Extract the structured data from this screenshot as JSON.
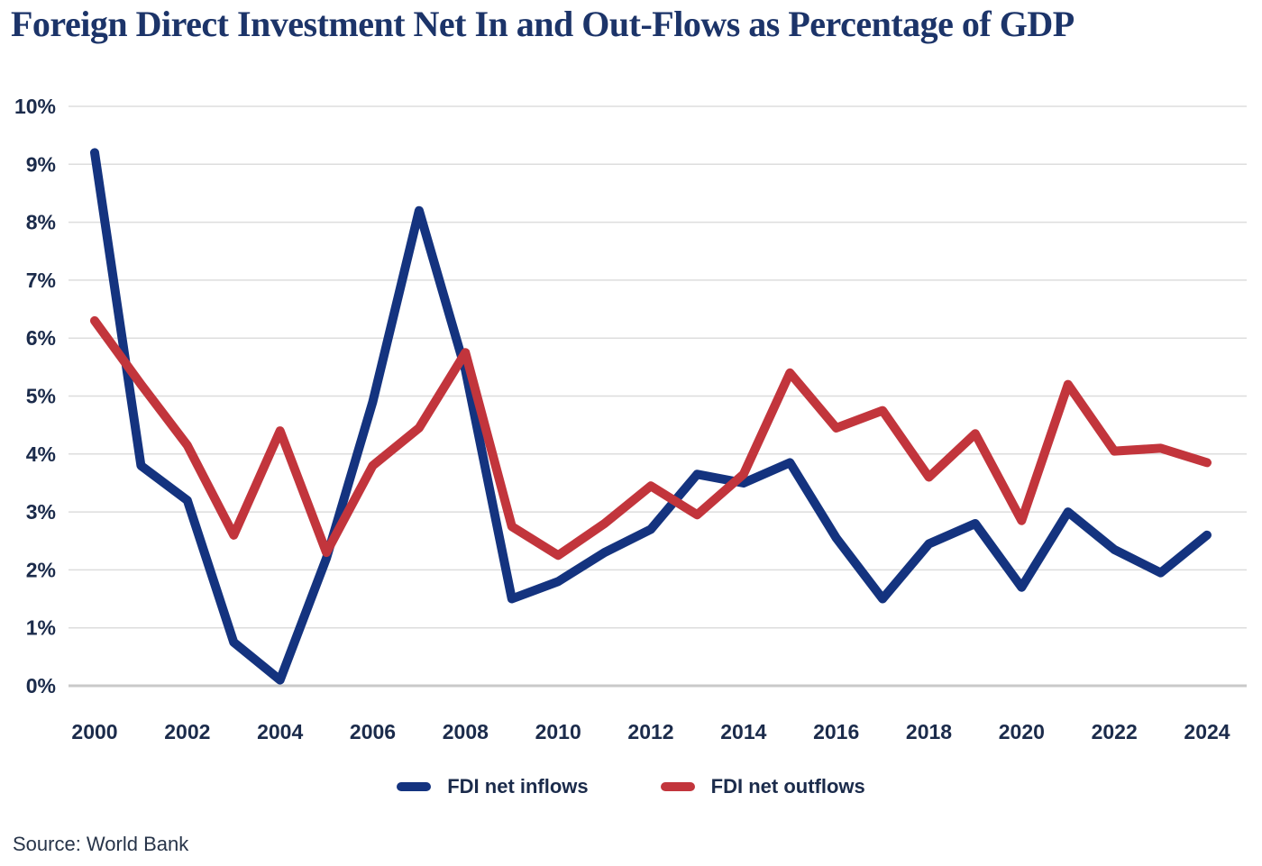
{
  "title": "Foreign Direct Investment Net In and Out-Flows as Percentage of GDP",
  "source": "Source: World Bank",
  "colors": {
    "title": "#1c3469",
    "tick_label": "#1b2b4b",
    "legend_label": "#1b2b4b",
    "source_text": "#273449",
    "gridline": "#dddddd",
    "baseline": "#c9c9c9",
    "inflows": "#14337f",
    "outflows": "#c2353c"
  },
  "chart_data": {
    "type": "line",
    "title": "Foreign Direct Investment Net In and Out-Flows as Percentage of GDP",
    "xlabel": "",
    "ylabel": "",
    "ylim": [
      0,
      10
    ],
    "grid": true,
    "legend_position": "bottom",
    "x": [
      2000,
      2001,
      2002,
      2003,
      2004,
      2005,
      2006,
      2007,
      2008,
      2009,
      2010,
      2011,
      2012,
      2013,
      2014,
      2015,
      2016,
      2017,
      2018,
      2019,
      2020,
      2021,
      2022,
      2023,
      2024
    ],
    "x_ticks": [
      2000,
      2002,
      2004,
      2006,
      2008,
      2010,
      2012,
      2014,
      2016,
      2018,
      2020,
      2022,
      2024
    ],
    "y_ticks": [
      "0%",
      "1%",
      "2%",
      "3%",
      "4%",
      "5%",
      "6%",
      "7%",
      "8%",
      "9%",
      "10%"
    ],
    "series": [
      {
        "name": "FDI net inflows",
        "color": "#14337f",
        "values": [
          9.2,
          3.8,
          3.2,
          0.75,
          0.1,
          2.2,
          4.9,
          8.2,
          5.45,
          1.5,
          1.8,
          2.3,
          2.7,
          3.65,
          3.5,
          3.85,
          2.55,
          1.5,
          2.45,
          2.8,
          1.7,
          3.0,
          2.35,
          1.95,
          2.6
        ]
      },
      {
        "name": "FDI net outflows",
        "color": "#c2353c",
        "values": [
          6.3,
          5.2,
          4.15,
          2.6,
          4.4,
          2.3,
          3.8,
          4.45,
          5.75,
          2.75,
          2.25,
          2.8,
          3.45,
          2.95,
          3.65,
          5.4,
          4.45,
          4.75,
          3.6,
          4.35,
          2.85,
          5.2,
          4.05,
          4.1,
          3.85
        ]
      }
    ]
  }
}
